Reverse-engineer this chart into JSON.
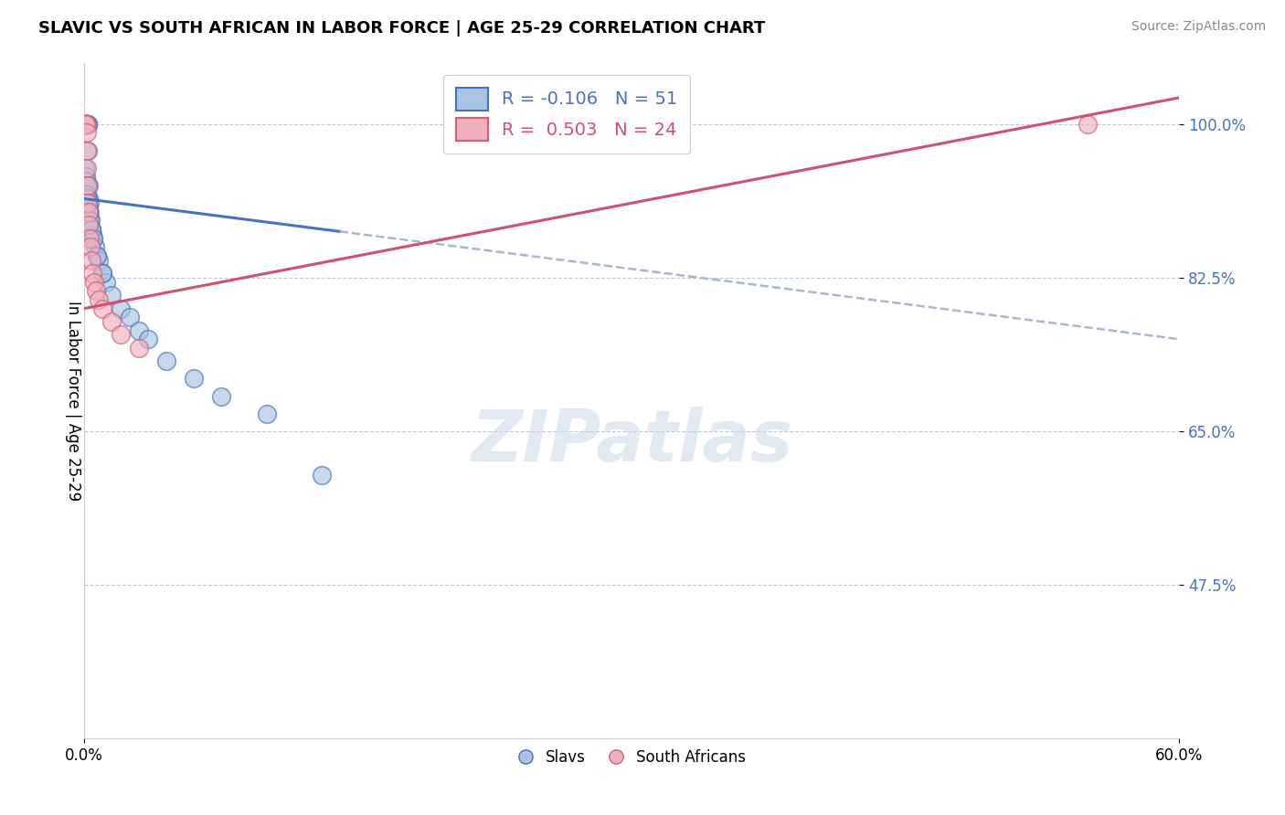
{
  "title": "SLAVIC VS SOUTH AFRICAN IN LABOR FORCE | AGE 25-29 CORRELATION CHART",
  "source": "Source: ZipAtlas.com",
  "ylabel": "In Labor Force | Age 25-29",
  "xlim_pct": [
    0.0,
    60.0
  ],
  "ylim_pct": [
    30.0,
    107.0
  ],
  "xtick_positions": [
    0.0,
    60.0
  ],
  "xticklabels": [
    "0.0%",
    "60.0%"
  ],
  "ytick_positions": [
    47.5,
    65.0,
    82.5,
    100.0
  ],
  "ytick_labels": [
    "47.5%",
    "65.0%",
    "82.5%",
    "100.0%"
  ],
  "watermark": "ZIPatlas",
  "slav_color": "#a8c4e0",
  "sa_color": "#f0b0c0",
  "slav_edge_color": "#4472c4",
  "sa_edge_color": "#d06070",
  "slav_line_color": "#4472c4",
  "sa_line_color": "#d05070",
  "dashed_color": "#a8b8cc",
  "ytick_color": "#4472c4",
  "slav_R": -0.106,
  "slav_N": 51,
  "sa_R": 0.503,
  "sa_N": 24,
  "slav_trend_y0": 91.5,
  "slav_trend_y60": 75.5,
  "sa_trend_y0": 79.0,
  "sa_trend_y60": 103.0,
  "dash_start_x": 14.0,
  "slav_points_x": [
    0.05,
    0.07,
    0.08,
    0.09,
    0.1,
    0.11,
    0.12,
    0.13,
    0.14,
    0.15,
    0.16,
    0.17,
    0.18,
    0.19,
    0.2,
    0.22,
    0.25,
    0.27,
    0.3,
    0.33,
    0.38,
    0.42,
    0.5,
    0.6,
    0.7,
    0.8,
    1.0,
    1.2,
    1.5,
    2.0,
    2.5,
    3.0,
    3.5,
    4.5,
    6.0,
    7.5,
    10.0,
    13.0,
    0.06,
    0.08,
    0.1,
    0.12,
    0.14,
    0.16,
    0.2,
    0.25,
    0.3,
    0.4,
    0.5,
    0.7,
    1.0
  ],
  "slav_points_y": [
    100.0,
    100.0,
    100.0,
    100.0,
    100.0,
    100.0,
    100.0,
    100.0,
    100.0,
    100.0,
    100.0,
    100.0,
    100.0,
    100.0,
    97.0,
    93.0,
    91.5,
    91.0,
    90.0,
    89.0,
    88.0,
    87.5,
    87.0,
    86.0,
    85.0,
    84.5,
    83.0,
    82.0,
    80.5,
    79.0,
    78.0,
    76.5,
    75.5,
    73.0,
    71.0,
    69.0,
    67.0,
    60.0,
    95.0,
    94.0,
    93.5,
    93.0,
    92.0,
    91.5,
    91.0,
    90.0,
    89.0,
    88.0,
    87.0,
    85.0,
    83.0
  ],
  "sa_points_x": [
    0.05,
    0.07,
    0.08,
    0.09,
    0.1,
    0.12,
    0.14,
    0.16,
    0.18,
    0.2,
    0.22,
    0.25,
    0.28,
    0.32,
    0.38,
    0.45,
    0.55,
    0.65,
    0.8,
    1.0,
    1.5,
    2.0,
    3.0,
    55.0
  ],
  "sa_points_y": [
    100.0,
    100.0,
    100.0,
    100.0,
    100.0,
    99.0,
    97.0,
    95.0,
    93.0,
    91.0,
    90.0,
    88.5,
    87.0,
    86.0,
    84.5,
    83.0,
    82.0,
    81.0,
    80.0,
    79.0,
    77.5,
    76.0,
    74.5,
    100.0
  ]
}
